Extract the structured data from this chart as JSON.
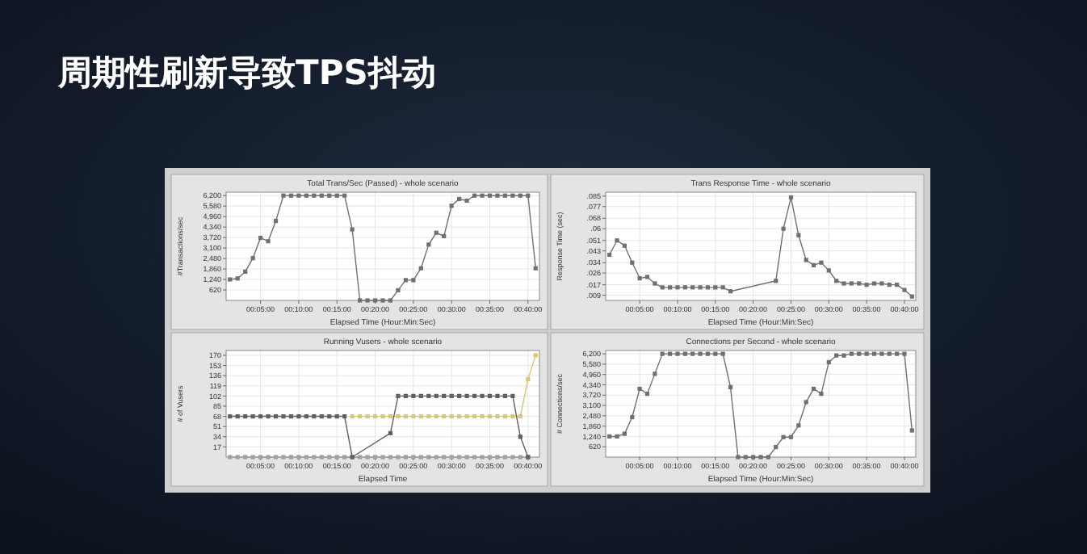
{
  "chart_data": [
    {
      "type": "other",
      "title": "周期性刷新导致TPS抖动"
    },
    {
      "type": "line",
      "title": "Total Trans/Sec (Passed) - whole scenario",
      "xlabel": "Elapsed Time (Hour:Min:Sec)",
      "ylabel": "#Transactions/sec",
      "marker": "square",
      "grid": true,
      "xlim": [
        0.5,
        41.5
      ],
      "ylim": [
        0,
        6400
      ],
      "xticks": [
        {
          "value": 5,
          "label": "00:05:00"
        },
        {
          "value": 10,
          "label": "00:10:00"
        },
        {
          "value": 15,
          "label": "00:15:00"
        },
        {
          "value": 20,
          "label": "00:20:00"
        },
        {
          "value": 25,
          "label": "00:25:00"
        },
        {
          "value": 30,
          "label": "00:30:00"
        },
        {
          "value": 35,
          "label": "00:35:00"
        },
        {
          "value": 40,
          "label": "00:40:00"
        }
      ],
      "yticks": [
        {
          "value": 620,
          "label": "620"
        },
        {
          "value": 1240,
          "label": "1,240"
        },
        {
          "value": 1860,
          "label": "1,860"
        },
        {
          "value": 2480,
          "label": "2,480"
        },
        {
          "value": 3100,
          "label": "3,100"
        },
        {
          "value": 3720,
          "label": "3,720"
        },
        {
          "value": 4340,
          "label": "4,340"
        },
        {
          "value": 4960,
          "label": "4,960"
        },
        {
          "value": 5580,
          "label": "5,580"
        },
        {
          "value": 6200,
          "label": "6,200"
        }
      ],
      "series": [
        {
          "color": "#707070",
          "x": [
            1,
            2,
            3,
            4,
            5,
            6,
            7,
            8,
            9,
            10,
            11,
            12,
            13,
            14,
            15,
            16,
            17,
            18,
            19,
            20,
            21,
            22,
            23,
            24,
            25,
            26,
            27,
            28,
            29,
            30,
            31,
            32,
            33,
            34,
            35,
            36,
            37,
            38,
            39,
            40,
            41
          ],
          "values": [
            1240,
            1300,
            1700,
            2500,
            3700,
            3500,
            4700,
            6200,
            6200,
            6200,
            6200,
            6200,
            6200,
            6200,
            6200,
            6200,
            4200,
            0,
            0,
            0,
            0,
            0,
            600,
            1200,
            1200,
            1900,
            3300,
            4000,
            3800,
            5600,
            6000,
            5900,
            6200,
            6200,
            6200,
            6200,
            6200,
            6200,
            6200,
            6200,
            1900
          ]
        }
      ]
    },
    {
      "type": "line",
      "title": "Trans Response Time - whole scenario",
      "xlabel": "Elapsed Time (Hour:Min:Sec)",
      "ylabel": "Response Time (sec)",
      "marker": "square",
      "grid": true,
      "xlim": [
        0.5,
        41.5
      ],
      "ylim": [
        0.005,
        0.088
      ],
      "xticks": [
        {
          "value": 5,
          "label": "00:05:00"
        },
        {
          "value": 10,
          "label": "00:10:00"
        },
        {
          "value": 15,
          "label": "00:15:00"
        },
        {
          "value": 20,
          "label": "00:20:00"
        },
        {
          "value": 25,
          "label": "00:25:00"
        },
        {
          "value": 30,
          "label": "00:30:00"
        },
        {
          "value": 35,
          "label": "00:35:00"
        },
        {
          "value": 40,
          "label": "00:40:00"
        }
      ],
      "yticks": [
        {
          "value": 0.009,
          "label": ".009"
        },
        {
          "value": 0.017,
          "label": ".017"
        },
        {
          "value": 0.026,
          "label": ".026"
        },
        {
          "value": 0.034,
          "label": ".034"
        },
        {
          "value": 0.043,
          "label": ".043"
        },
        {
          "value": 0.051,
          "label": ".051"
        },
        {
          "value": 0.06,
          "label": ".06"
        },
        {
          "value": 0.068,
          "label": ".068"
        },
        {
          "value": 0.077,
          "label": ".077"
        },
        {
          "value": 0.085,
          "label": ".085"
        }
      ],
      "series": [
        {
          "color": "#707070",
          "x": [
            1,
            2,
            3,
            4,
            5,
            6,
            7,
            8,
            9,
            10,
            11,
            12,
            13,
            14,
            15,
            16,
            17,
            23,
            24,
            25,
            26,
            27,
            28,
            29,
            30,
            31,
            32,
            33,
            34,
            35,
            36,
            37,
            38,
            39,
            40,
            41
          ],
          "values": [
            0.04,
            0.051,
            0.047,
            0.034,
            0.022,
            0.023,
            0.018,
            0.015,
            0.015,
            0.015,
            0.015,
            0.015,
            0.015,
            0.015,
            0.015,
            0.015,
            0.012,
            0.02,
            0.06,
            0.084,
            0.055,
            0.036,
            0.032,
            0.034,
            0.028,
            0.02,
            0.018,
            0.018,
            0.018,
            0.017,
            0.018,
            0.018,
            0.017,
            0.017,
            0.013,
            0.008
          ]
        }
      ]
    },
    {
      "type": "line",
      "title": "Running Vusers - whole scenario",
      "xlabel": "Elapsed Time",
      "ylabel": "# of Vusers",
      "marker": "square",
      "grid": true,
      "xlim": [
        0.5,
        41.5
      ],
      "ylim": [
        0,
        178
      ],
      "xticks": [
        {
          "value": 5,
          "label": "00:05:00"
        },
        {
          "value": 10,
          "label": "00:10:00"
        },
        {
          "value": 15,
          "label": "00:15:00"
        },
        {
          "value": 20,
          "label": "00:20:00"
        },
        {
          "value": 25,
          "label": "00:25:00"
        },
        {
          "value": 30,
          "label": "00:30:00"
        },
        {
          "value": 35,
          "label": "00:35:00"
        },
        {
          "value": 40,
          "label": "00:40:00"
        }
      ],
      "yticks": [
        17,
        34,
        51,
        68,
        85,
        102,
        119,
        136,
        153,
        170
      ],
      "series": [
        {
          "color": "#a0a0a0",
          "x": [
            1,
            2,
            3,
            4,
            5,
            6,
            7,
            8,
            9,
            10,
            11,
            12,
            13,
            14,
            15,
            16,
            17,
            18,
            19,
            20,
            21,
            22,
            23,
            24,
            25,
            26,
            27,
            28,
            29,
            30,
            31,
            32,
            33,
            34,
            35,
            36,
            37,
            38,
            39,
            40
          ],
          "values": [
            0,
            0,
            0,
            0,
            0,
            0,
            0,
            0,
            0,
            0,
            0,
            0,
            0,
            0,
            0,
            0,
            0,
            0,
            0,
            0,
            0,
            0,
            0,
            0,
            0,
            0,
            0,
            0,
            0,
            0,
            0,
            0,
            0,
            0,
            0,
            0,
            0,
            0,
            0,
            0
          ]
        },
        {
          "color": "#d8c870",
          "x": [
            17,
            18,
            19,
            20,
            21,
            22,
            23,
            24,
            25,
            26,
            27,
            28,
            29,
            30,
            31,
            32,
            33,
            34,
            35,
            36,
            37,
            38,
            39,
            40,
            41
          ],
          "values": [
            68,
            68,
            68,
            68,
            68,
            68,
            68,
            68,
            68,
            68,
            68,
            68,
            68,
            68,
            68,
            68,
            68,
            68,
            68,
            68,
            68,
            68,
            68,
            130,
            170
          ]
        },
        {
          "color": "#606060",
          "x": [
            1,
            2,
            3,
            4,
            5,
            6,
            7,
            8,
            9,
            10,
            11,
            12,
            13,
            14,
            15,
            16,
            17,
            22,
            23,
            24,
            25,
            26,
            27,
            28,
            29,
            30,
            31,
            32,
            33,
            34,
            35,
            36,
            37,
            38,
            39,
            40
          ],
          "values": [
            68,
            68,
            68,
            68,
            68,
            68,
            68,
            68,
            68,
            68,
            68,
            68,
            68,
            68,
            68,
            68,
            0,
            40,
            102,
            102,
            102,
            102,
            102,
            102,
            102,
            102,
            102,
            102,
            102,
            102,
            102,
            102,
            102,
            102,
            34,
            0
          ]
        }
      ]
    },
    {
      "type": "line",
      "title": "Connections per Second - whole scenario",
      "xlabel": "Elapsed Time (Hour:Min:Sec)",
      "ylabel": "# Connections/sec",
      "marker": "square",
      "grid": true,
      "xlim": [
        0.5,
        41.5
      ],
      "ylim": [
        0,
        6400
      ],
      "xticks": [
        {
          "value": 5,
          "label": "00:05:00"
        },
        {
          "value": 10,
          "label": "00:10:00"
        },
        {
          "value": 15,
          "label": "00:15:00"
        },
        {
          "value": 20,
          "label": "00:20:00"
        },
        {
          "value": 25,
          "label": "00:25:00"
        },
        {
          "value": 30,
          "label": "00:30:00"
        },
        {
          "value": 35,
          "label": "00:35:00"
        },
        {
          "value": 40,
          "label": "00:40:00"
        }
      ],
      "yticks": [
        {
          "value": 620,
          "label": "620"
        },
        {
          "value": 1240,
          "label": "1,240"
        },
        {
          "value": 1860,
          "label": "1,860"
        },
        {
          "value": 2480,
          "label": "2,480"
        },
        {
          "value": 3100,
          "label": "3,100"
        },
        {
          "value": 3720,
          "label": "3,720"
        },
        {
          "value": 4340,
          "label": "4,340"
        },
        {
          "value": 4960,
          "label": "4,960"
        },
        {
          "value": 5580,
          "label": "5,580"
        },
        {
          "value": 6200,
          "label": "6,200"
        }
      ],
      "series": [
        {
          "color": "#707070",
          "x": [
            1,
            2,
            3,
            4,
            5,
            6,
            7,
            8,
            9,
            10,
            11,
            12,
            13,
            14,
            15,
            16,
            17,
            18,
            19,
            20,
            21,
            22,
            23,
            24,
            25,
            26,
            27,
            28,
            29,
            30,
            31,
            32,
            33,
            34,
            35,
            36,
            37,
            38,
            39,
            40,
            41
          ],
          "values": [
            1240,
            1240,
            1400,
            2400,
            4100,
            3800,
            5000,
            6200,
            6200,
            6200,
            6200,
            6200,
            6200,
            6200,
            6200,
            6200,
            4200,
            0,
            0,
            0,
            0,
            0,
            600,
            1200,
            1200,
            1900,
            3300,
            4100,
            3800,
            5700,
            6100,
            6100,
            6200,
            6200,
            6200,
            6200,
            6200,
            6200,
            6200,
            6200,
            1600
          ]
        }
      ]
    }
  ]
}
